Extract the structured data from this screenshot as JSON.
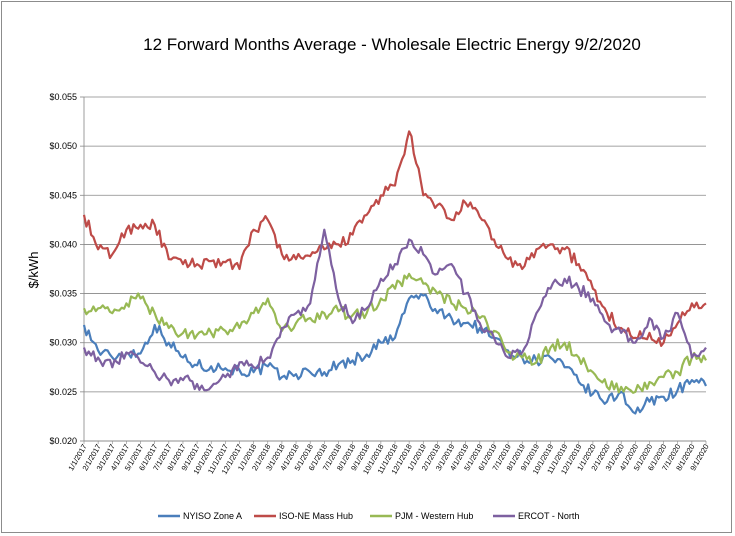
{
  "chart_data": {
    "type": "line",
    "title": "12 Forward Months Average - Wholesale Electric Energy 9/2/2020",
    "ylabel": "$/kWh",
    "xlabel": "",
    "ylim": [
      0.02,
      0.055
    ],
    "yticks": [
      0.02,
      0.025,
      0.03,
      0.035,
      0.04,
      0.045,
      0.05,
      0.055
    ],
    "ytick_labels": [
      "$0.020",
      "$0.025",
      "$0.030",
      "$0.035",
      "$0.040",
      "$0.045",
      "$0.050",
      "$0.055"
    ],
    "grid": true,
    "legend_position": "bottom",
    "x": [
      "1/1/2017",
      "2/1/2017",
      "3/1/2017",
      "4/1/2017",
      "5/1/2017",
      "6/1/2017",
      "7/1/2017",
      "8/1/2017",
      "9/1/2017",
      "10/1/2017",
      "11/1/2017",
      "12/1/2017",
      "1/1/2018",
      "2/1/2018",
      "3/1/2018",
      "4/1/2018",
      "5/1/2018",
      "6/1/2018",
      "7/1/2018",
      "8/1/2018",
      "9/1/2018",
      "10/1/2018",
      "11/1/2018",
      "12/1/2018",
      "1/1/2019",
      "2/1/2019",
      "3/1/2019",
      "4/1/2019",
      "5/1/2019",
      "6/1/2019",
      "7/1/2019",
      "8/1/2019",
      "9/1/2019",
      "10/1/2019",
      "11/1/2019",
      "12/1/2019",
      "1/1/2020",
      "2/1/2020",
      "3/1/2020",
      "4/1/2020",
      "5/1/2020",
      "6/1/2020",
      "7/1/2020",
      "8/1/2020",
      "9/1/2020"
    ],
    "series": [
      {
        "name": "NYISO Zone A",
        "color": "#4a7ebb",
        "values": [
          0.0318,
          0.0292,
          0.0285,
          0.029,
          0.0289,
          0.0318,
          0.03,
          0.0285,
          0.0277,
          0.0276,
          0.0274,
          0.0272,
          0.027,
          0.0276,
          0.0265,
          0.0268,
          0.027,
          0.027,
          0.0278,
          0.0282,
          0.0288,
          0.03,
          0.0305,
          0.0345,
          0.0348,
          0.033,
          0.0325,
          0.032,
          0.0315,
          0.0305,
          0.0292,
          0.0285,
          0.0282,
          0.0285,
          0.0275,
          0.026,
          0.0248,
          0.024,
          0.025,
          0.0228,
          0.024,
          0.0245,
          0.0252,
          0.0262,
          0.0256
        ]
      },
      {
        "name": "ISO-NE Mass Hub",
        "color": "#be4b48",
        "values": [
          0.043,
          0.0395,
          0.039,
          0.0415,
          0.042,
          0.042,
          0.0385,
          0.038,
          0.038,
          0.0383,
          0.0382,
          0.0375,
          0.0415,
          0.0425,
          0.039,
          0.0385,
          0.0388,
          0.0395,
          0.04,
          0.041,
          0.043,
          0.045,
          0.046,
          0.0515,
          0.045,
          0.044,
          0.0425,
          0.0442,
          0.0428,
          0.0405,
          0.0385,
          0.0375,
          0.0395,
          0.04,
          0.0395,
          0.038,
          0.0355,
          0.033,
          0.0315,
          0.0305,
          0.031,
          0.03,
          0.032,
          0.034,
          0.034
        ]
      },
      {
        "name": "PJM - Western Hub",
        "color": "#98b954",
        "values": [
          0.0335,
          0.0335,
          0.033,
          0.034,
          0.0345,
          0.033,
          0.0315,
          0.031,
          0.0308,
          0.031,
          0.0312,
          0.0315,
          0.033,
          0.0345,
          0.0312,
          0.032,
          0.0325,
          0.033,
          0.0332,
          0.0328,
          0.033,
          0.0345,
          0.0355,
          0.037,
          0.036,
          0.035,
          0.034,
          0.0335,
          0.0325,
          0.0312,
          0.029,
          0.0285,
          0.028,
          0.0295,
          0.03,
          0.0285,
          0.027,
          0.0255,
          0.0255,
          0.025,
          0.026,
          0.0265,
          0.027,
          0.0285,
          0.0282
        ]
      },
      {
        "name": "ERCOT - North",
        "color": "#7d60a0",
        "values": [
          0.0295,
          0.0285,
          0.0275,
          0.029,
          0.028,
          0.027,
          0.0262,
          0.0262,
          0.0258,
          0.0255,
          0.0265,
          0.028,
          0.0275,
          0.0285,
          0.0315,
          0.033,
          0.034,
          0.0415,
          0.0345,
          0.032,
          0.0335,
          0.0365,
          0.038,
          0.0405,
          0.039,
          0.037,
          0.038,
          0.035,
          0.032,
          0.0305,
          0.0285,
          0.029,
          0.033,
          0.0355,
          0.0365,
          0.0355,
          0.0345,
          0.032,
          0.031,
          0.03,
          0.0325,
          0.0305,
          0.033,
          0.0285,
          0.0295
        ]
      }
    ]
  }
}
